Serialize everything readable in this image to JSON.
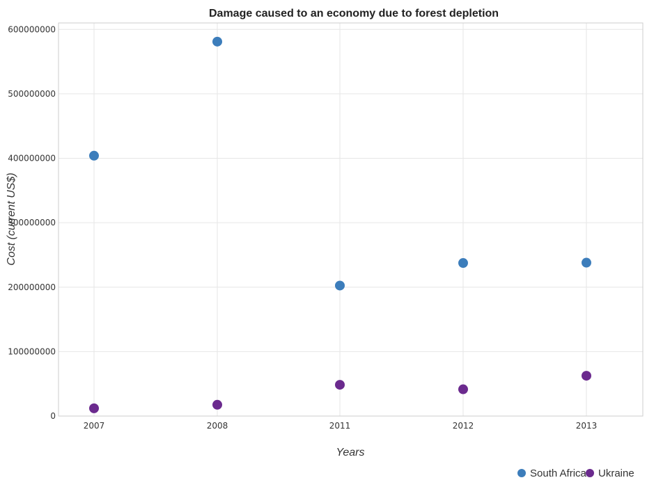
{
  "chart_data": {
    "type": "scatter",
    "title": "Damage caused to an economy due to forest depletion",
    "xlabel": "Years",
    "ylabel": "Cost (current US$)",
    "categories": [
      "2007",
      "2008",
      "2011",
      "2012",
      "2013"
    ],
    "ylim": [
      0,
      610000000
    ],
    "yticks": [
      0,
      100000000,
      200000000,
      300000000,
      400000000,
      500000000,
      600000000
    ],
    "ytick_labels": [
      "0",
      "100000000",
      "200000000",
      "300000000",
      "400000000",
      "500000000",
      "600000000"
    ],
    "grid": true,
    "legend_position": "bottom-right",
    "series": [
      {
        "name": "South Africa",
        "color": "#3c7dbb",
        "values": [
          404000000,
          581000000,
          202500000,
          237500000,
          238000000
        ]
      },
      {
        "name": "Ukraine",
        "color": "#6b2a8e",
        "values": [
          12000000,
          17500000,
          48500000,
          41500000,
          62500000
        ]
      }
    ]
  }
}
